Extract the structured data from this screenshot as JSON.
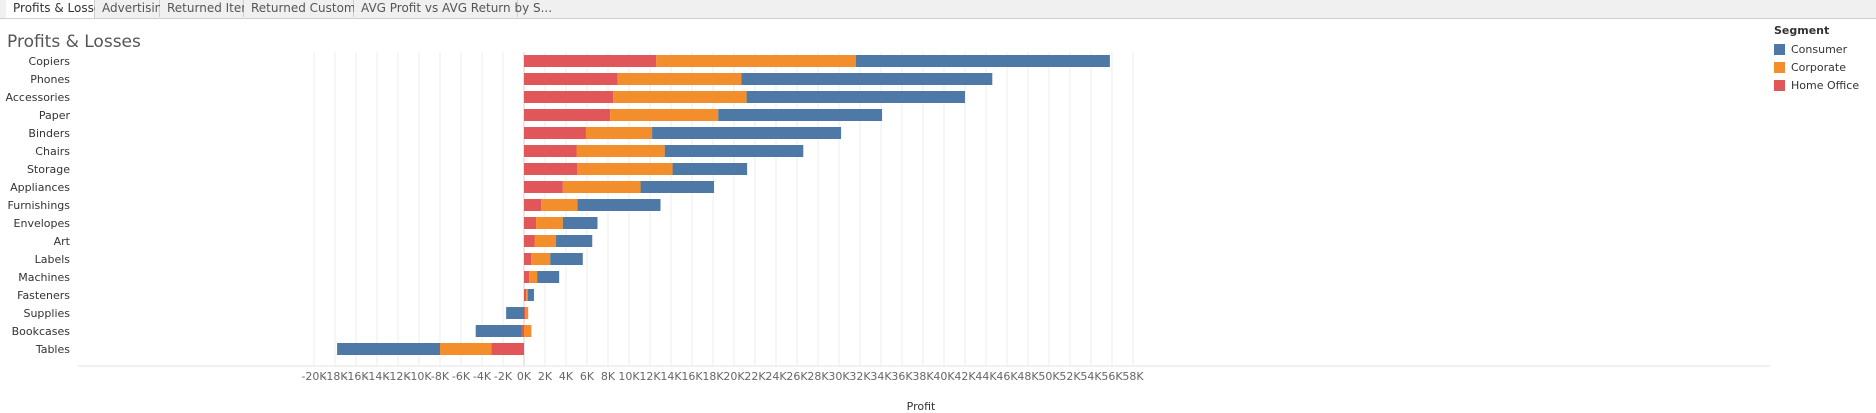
{
  "tabs": [
    {
      "label": "Profits & Losses",
      "active": true
    },
    {
      "label": "Advertising",
      "active": false
    },
    {
      "label": "Returned Items",
      "active": false
    },
    {
      "label": "Returned Customers",
      "active": false
    },
    {
      "label": "AVG Profit vs AVG Return by S...",
      "active": false
    }
  ],
  "dashboard": {
    "title": "Profits & Losses"
  },
  "legend": {
    "title": "Segment",
    "items": [
      {
        "label": "Consumer",
        "color": "#4e79a7"
      },
      {
        "label": "Corporate",
        "color": "#f28e2b"
      },
      {
        "label": "Home Office",
        "color": "#e15759"
      }
    ]
  },
  "chart_data": {
    "type": "bar",
    "orientation": "horizontal",
    "stacked": true,
    "xlabel": "Profit",
    "ylabel": "",
    "xlim": [
      -21000,
      59000
    ],
    "xticks": [
      -20000,
      -18000,
      -16000,
      -14000,
      -12000,
      -10000,
      -8000,
      -6000,
      -4000,
      -2000,
      0,
      2000,
      4000,
      6000,
      8000,
      10000,
      12000,
      14000,
      16000,
      18000,
      20000,
      22000,
      24000,
      26000,
      28000,
      30000,
      32000,
      34000,
      36000,
      38000,
      40000,
      42000,
      44000,
      46000,
      48000,
      50000,
      52000,
      54000,
      56000,
      58000
    ],
    "xtick_labels": [
      "-20K",
      "-18K",
      "-16K",
      "-14K",
      "-12K",
      "-10K",
      "-8K",
      "-6K",
      "-4K",
      "-2K",
      "0K",
      "2K",
      "4K",
      "6K",
      "8K",
      "10K",
      "12K",
      "14K",
      "16K",
      "18K",
      "20K",
      "22K",
      "24K",
      "26K",
      "28K",
      "30K",
      "32K",
      "34K",
      "36K",
      "38K",
      "40K",
      "42K",
      "44K",
      "46K",
      "48K",
      "50K",
      "52K",
      "54K",
      "56K",
      "58K"
    ],
    "grid": "vertical",
    "legend_position": "right",
    "categories": [
      "Copiers",
      "Phones",
      "Accessories",
      "Paper",
      "Binders",
      "Chairs",
      "Storage",
      "Appliances",
      "Furnishings",
      "Envelopes",
      "Art",
      "Labels",
      "Machines",
      "Fasteners",
      "Supplies",
      "Bookcases",
      "Tables"
    ],
    "series": [
      {
        "name": "Home Office",
        "color": "#e15759",
        "values": [
          12600,
          8900,
          8500,
          8200,
          5900,
          5000,
          5050,
          3700,
          1650,
          1150,
          1000,
          700,
          500,
          200,
          100,
          -200,
          -3100
        ]
      },
      {
        "name": "Corporate",
        "color": "#f28e2b",
        "values": [
          19000,
          11800,
          12700,
          10300,
          6300,
          8400,
          9100,
          7400,
          3450,
          2550,
          2050,
          1800,
          750,
          150,
          300,
          700,
          -4900
        ]
      },
      {
        "name": "Consumer",
        "color": "#4e79a7",
        "values": [
          24200,
          23900,
          20800,
          15600,
          18000,
          13200,
          7100,
          7000,
          7900,
          3300,
          3450,
          3100,
          2100,
          600,
          -1700,
          -4400,
          -9800
        ]
      }
    ]
  }
}
